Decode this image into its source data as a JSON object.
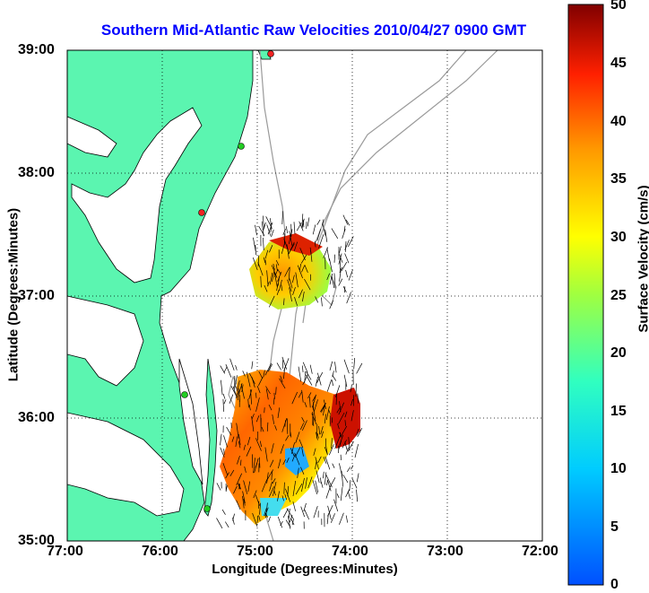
{
  "title": "Southern Mid-Atlantic Raw Velocities 2010/04/27 0900 GMT",
  "x_axis": {
    "label": "Longitude (Degrees:Minutes)",
    "ticks": [
      "77:00",
      "76:00",
      "75:00",
      "74:00",
      "73:00",
      "72:00"
    ]
  },
  "y_axis": {
    "label": "Latitude (Degrees:Minutes)",
    "ticks": [
      "39:00",
      "38:00",
      "37:00",
      "36:00",
      "35:00"
    ]
  },
  "colorbar": {
    "label": "Surface Velocity (cm/s)",
    "ticks": [
      "50",
      "45",
      "40",
      "35",
      "30",
      "25",
      "20",
      "15",
      "10",
      "5",
      "0"
    ],
    "range": [
      0,
      50
    ],
    "colormap": "jet"
  },
  "colors": {
    "land": "#5bf5b0",
    "title": "#0000ff",
    "station_green": "#22cc22",
    "station_red": "#ee2222"
  }
}
